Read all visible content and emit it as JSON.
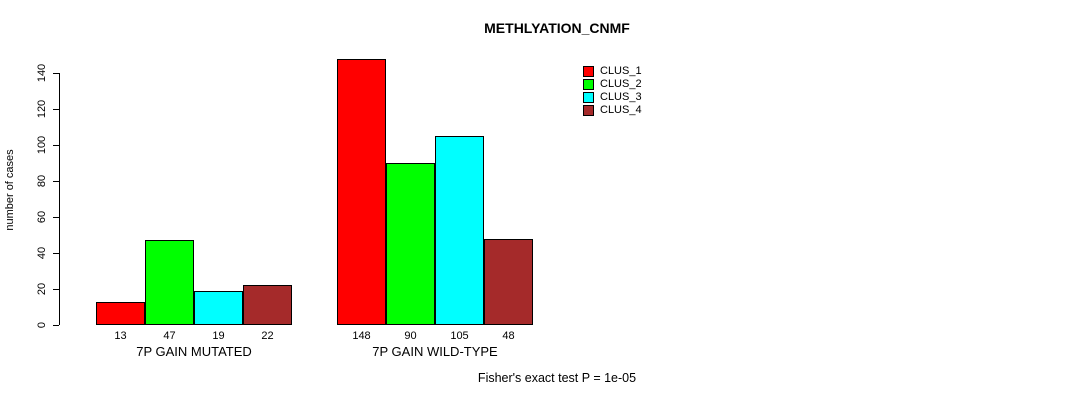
{
  "chart_data": {
    "type": "bar",
    "title": "METHLYATION_CNMF",
    "ylabel": "number of cases",
    "xlabel": "",
    "ylim": [
      0,
      140
    ],
    "yticks": [
      0,
      20,
      40,
      60,
      80,
      100,
      120,
      140
    ],
    "grid": false,
    "legend_position": "top-right",
    "categories": [
      "7P GAIN MUTATED",
      "7P GAIN WILD-TYPE"
    ],
    "series": [
      {
        "name": "CLUS_1",
        "color": "#FF0000",
        "values": [
          13,
          148
        ]
      },
      {
        "name": "CLUS_2",
        "color": "#00FF00",
        "values": [
          47,
          90
        ]
      },
      {
        "name": "CLUS_3",
        "color": "#00FFFF",
        "values": [
          19,
          105
        ]
      },
      {
        "name": "CLUS_4",
        "color": "#A52A2A",
        "values": [
          22,
          48
        ]
      }
    ],
    "bar_value_labels": [
      [
        13,
        47,
        19,
        22
      ],
      [
        148,
        90,
        105,
        48
      ]
    ],
    "caption": "Fisher's exact test P = 1e-05"
  }
}
